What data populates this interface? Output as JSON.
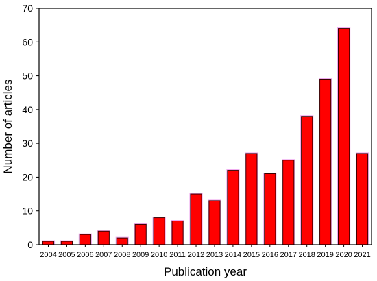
{
  "chart_data": {
    "type": "bar",
    "categories": [
      "2004",
      "2005",
      "2006",
      "2007",
      "2008",
      "2009",
      "2010",
      "2011",
      "2012",
      "2013",
      "2014",
      "2015",
      "2016",
      "2017",
      "2018",
      "2019",
      "2020",
      "2021"
    ],
    "values": [
      1,
      1,
      3,
      4,
      2,
      6,
      8,
      7,
      15,
      13,
      22,
      27,
      21,
      25,
      38,
      49,
      64,
      27
    ],
    "xlabel": "Publication year",
    "ylabel": "Number of articles",
    "ylim": [
      0,
      70
    ],
    "yticks": [
      0,
      10,
      20,
      30,
      40,
      50,
      60,
      70
    ],
    "grid": false,
    "legend": "none",
    "colors": {
      "bar_fill": "#ff0000",
      "bar_edge": "#3a0000",
      "bar_glow": "#e060e0",
      "axis": "#000000"
    }
  }
}
